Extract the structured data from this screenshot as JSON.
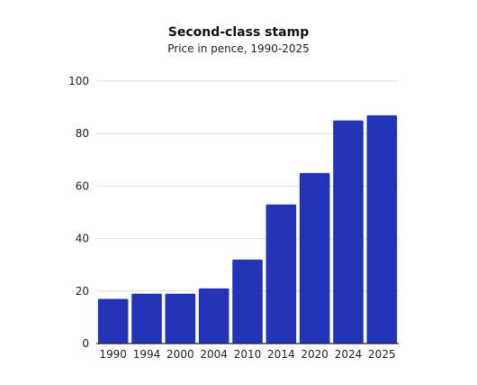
{
  "chart_data": {
    "type": "bar",
    "title": "Second-class stamp",
    "subtitle": "Price in pence, 1990-2025",
    "xlabel": "",
    "ylabel": "",
    "categories": [
      "1990",
      "1994",
      "2000",
      "2004",
      "2010",
      "2014",
      "2020",
      "2024",
      "2025"
    ],
    "values": [
      17,
      19,
      19,
      21,
      32,
      53,
      65,
      85,
      87
    ],
    "ylim": [
      0,
      100
    ],
    "yticks": [
      "0",
      "20",
      "40",
      "60",
      "80",
      "100"
    ],
    "grid": true,
    "legend": "none",
    "bar_color": "#2234b5",
    "grid_color": "#dddddd",
    "axis_color": "#222222"
  }
}
